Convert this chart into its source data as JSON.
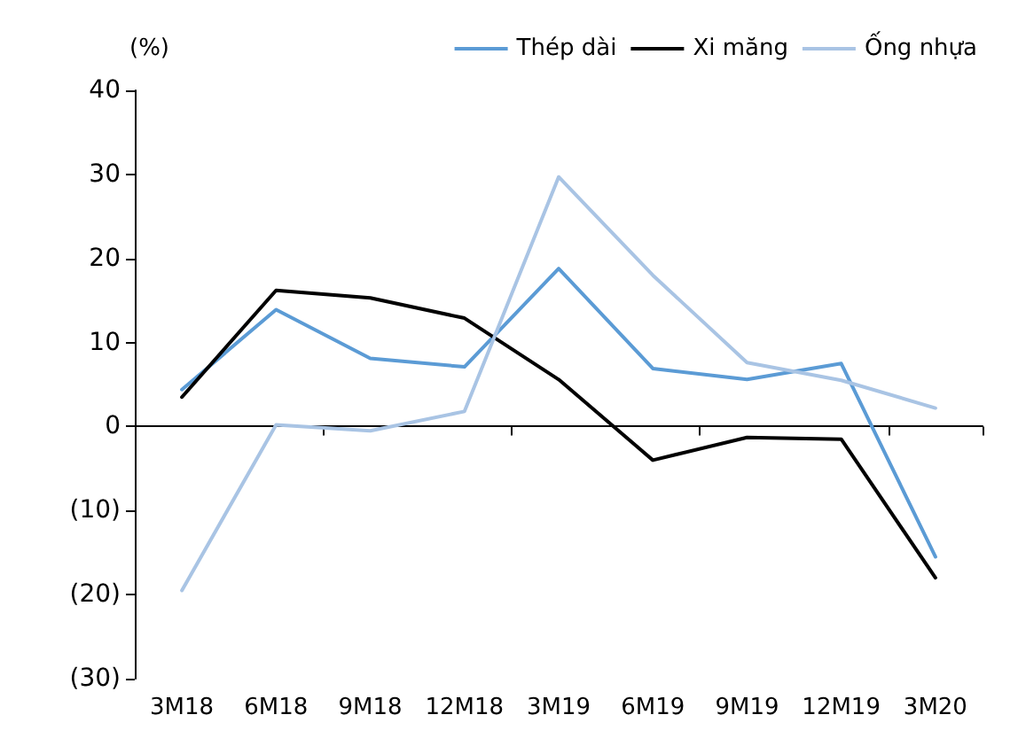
{
  "chart_data": {
    "type": "line",
    "ylabel": "(%)",
    "categories": [
      "3M18",
      "6M18",
      "9M18",
      "12M18",
      "3M19",
      "6M19",
      "9M19",
      "12M19",
      "3M20"
    ],
    "series": [
      {
        "name": "Thép dài",
        "color": "#5b9bd5",
        "values": [
          4.4,
          13.9,
          8.1,
          7.1,
          18.8,
          6.9,
          5.6,
          7.5,
          -15.5
        ]
      },
      {
        "name": "Xi măng",
        "color": "#000000",
        "values": [
          3.5,
          16.2,
          15.3,
          12.9,
          5.6,
          -4,
          -1.3,
          -1.5,
          -18
        ]
      },
      {
        "name": "Ống nhựa",
        "color": "#a9c4e4",
        "values": [
          -19.5,
          0.2,
          -0.5,
          1.8,
          29.7,
          18,
          7.6,
          5.5,
          2.2
        ]
      }
    ],
    "ylim": [
      -30,
      40
    ],
    "yticks": [
      40,
      30,
      20,
      10,
      0,
      {
        "value": -10,
        "label": "(10)"
      },
      {
        "value": -20,
        "label": "(20)"
      },
      {
        "value": -30,
        "label": "(30)"
      }
    ],
    "legend": "top right",
    "marker": "none",
    "line_style": "solid"
  }
}
